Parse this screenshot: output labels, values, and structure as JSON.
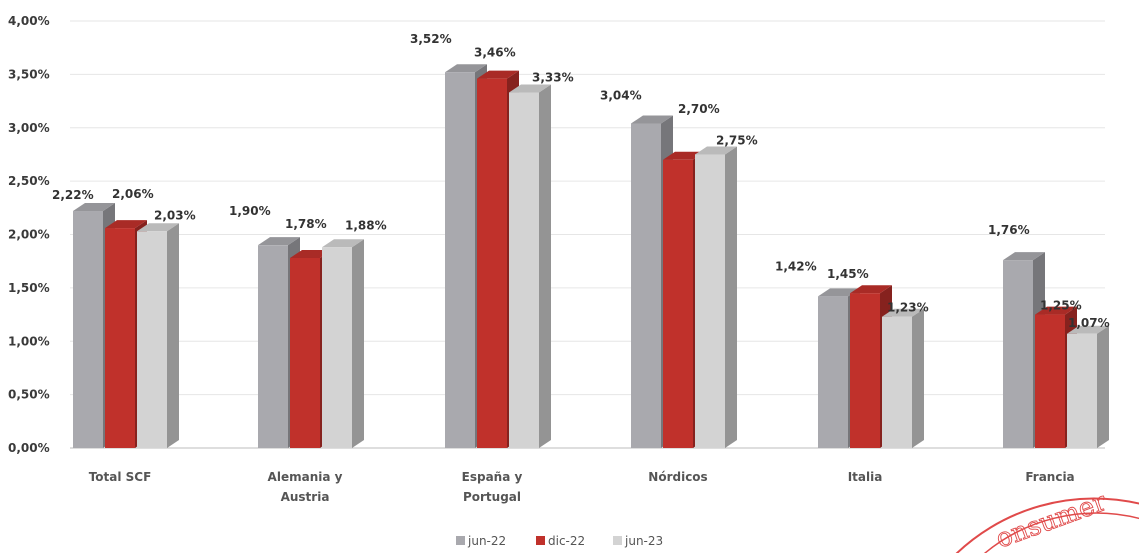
{
  "colors": {
    "jun22": "#a9a9ae",
    "dic22": "#c0312b",
    "jun23": "#d3d3d3",
    "grid": "#e6e6e6",
    "stamp": "#e04a4a"
  },
  "chart_data": {
    "type": "bar",
    "categories": [
      [
        "Total SCF"
      ],
      [
        "Alemania y",
        "Austria"
      ],
      [
        "España y",
        "Portugal"
      ],
      [
        "Nórdicos"
      ],
      [
        "Italia"
      ],
      [
        "Francia"
      ]
    ],
    "series": [
      {
        "name": "jun-22",
        "values": [
          2.22,
          1.9,
          3.52,
          3.04,
          1.42,
          1.76
        ],
        "labels": [
          "2,22%",
          "1,90%",
          "3,52%",
          "3,04%",
          "1,42%",
          "1,76%"
        ]
      },
      {
        "name": "dic-22",
        "values": [
          2.06,
          1.78,
          3.46,
          2.7,
          1.45,
          1.25
        ],
        "labels": [
          "2,06%",
          "1,78%",
          "3,46%",
          "2,70%",
          "1,45%",
          "1,25%"
        ]
      },
      {
        "name": "jun-23",
        "values": [
          2.03,
          1.88,
          3.33,
          2.75,
          1.23,
          1.07
        ],
        "labels": [
          "2,03%",
          "1,88%",
          "3,33%",
          "2,75%",
          "1,23%",
          "1,07%"
        ]
      }
    ],
    "yticks": [
      "0,00%",
      "0,50%",
      "1,00%",
      "1,50%",
      "2,00%",
      "2,50%",
      "3,00%",
      "3,50%",
      "4,00%"
    ],
    "ylim": [
      0,
      4
    ],
    "grid": true,
    "legend_position": "bottom",
    "style": "3d-clustered-column"
  },
  "stamp": {
    "text": "onsumer"
  }
}
